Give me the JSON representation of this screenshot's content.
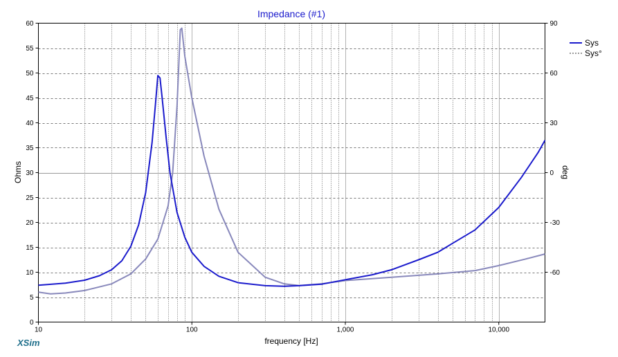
{
  "chart_data": {
    "type": "line",
    "title": "Impedance (#1)",
    "xlabel": "frequency [Hz]",
    "ylabel": "Ohms",
    "y2label": "deg",
    "xscale": "log",
    "xlim": [
      10,
      20000
    ],
    "ylim": [
      0,
      60
    ],
    "y2lim": [
      -90,
      90
    ],
    "xticks": [
      10,
      100,
      1000,
      10000
    ],
    "xtick_labels": [
      "10",
      "100",
      "1,000",
      "10,000"
    ],
    "yticks": [
      0,
      5,
      10,
      15,
      20,
      25,
      30,
      35,
      40,
      45,
      50,
      55,
      60
    ],
    "ytick_labels": [
      "0",
      "5",
      "10",
      "15",
      "20",
      "25",
      "30",
      "35",
      "40",
      "45",
      "50",
      "55",
      "60"
    ],
    "y2ticks": [
      -60,
      -30,
      0,
      30,
      60,
      90
    ],
    "y2tick_labels": [
      "-60",
      "-30",
      "0",
      "30",
      "60",
      "90"
    ],
    "grid": true,
    "legend_position": "top-right",
    "series": [
      {
        "name": "Sys",
        "axis": "left",
        "color": "#1a1acc",
        "style": "solid",
        "points": [
          [
            10,
            7.4
          ],
          [
            15,
            7.8
          ],
          [
            20,
            8.4
          ],
          [
            25,
            9.3
          ],
          [
            30,
            10.5
          ],
          [
            35,
            12.3
          ],
          [
            40,
            15.2
          ],
          [
            45,
            19.5
          ],
          [
            50,
            26
          ],
          [
            55,
            36
          ],
          [
            58,
            44
          ],
          [
            60,
            49.5
          ],
          [
            62,
            49
          ],
          [
            64,
            45
          ],
          [
            68,
            37
          ],
          [
            72,
            30
          ],
          [
            80,
            22
          ],
          [
            90,
            17
          ],
          [
            100,
            14
          ],
          [
            120,
            11.2
          ],
          [
            150,
            9.2
          ],
          [
            200,
            7.9
          ],
          [
            300,
            7.3
          ],
          [
            400,
            7.2
          ],
          [
            500,
            7.3
          ],
          [
            700,
            7.6
          ],
          [
            1000,
            8.5
          ],
          [
            1500,
            9.5
          ],
          [
            2000,
            10.5
          ],
          [
            3000,
            12.5
          ],
          [
            4000,
            14
          ],
          [
            5000,
            15.8
          ],
          [
            7000,
            18.5
          ],
          [
            10000,
            23
          ],
          [
            14000,
            29
          ],
          [
            18000,
            34
          ],
          [
            20000,
            36.5
          ]
        ]
      },
      {
        "name": "Sys°",
        "axis": "right",
        "color": "#8888bb",
        "style": "solid",
        "points": [
          [
            10,
            -72
          ],
          [
            12,
            -73
          ],
          [
            15,
            -72.5
          ],
          [
            20,
            -71
          ],
          [
            30,
            -67
          ],
          [
            40,
            -61
          ],
          [
            50,
            -52
          ],
          [
            60,
            -40
          ],
          [
            70,
            -20
          ],
          [
            75,
            0
          ],
          [
            80,
            40
          ],
          [
            84,
            86
          ],
          [
            86,
            87
          ],
          [
            90,
            70
          ],
          [
            100,
            45
          ],
          [
            120,
            10
          ],
          [
            150,
            -22
          ],
          [
            200,
            -48
          ],
          [
            300,
            -63
          ],
          [
            400,
            -67
          ],
          [
            500,
            -68
          ],
          [
            700,
            -67
          ],
          [
            1000,
            -65
          ],
          [
            2000,
            -63
          ],
          [
            4000,
            -61
          ],
          [
            7000,
            -59
          ],
          [
            10000,
            -56
          ],
          [
            15000,
            -52
          ],
          [
            20000,
            -49
          ]
        ]
      }
    ]
  },
  "legend": {
    "items": [
      "Sys",
      "Sys°"
    ]
  },
  "brand": "XSim"
}
